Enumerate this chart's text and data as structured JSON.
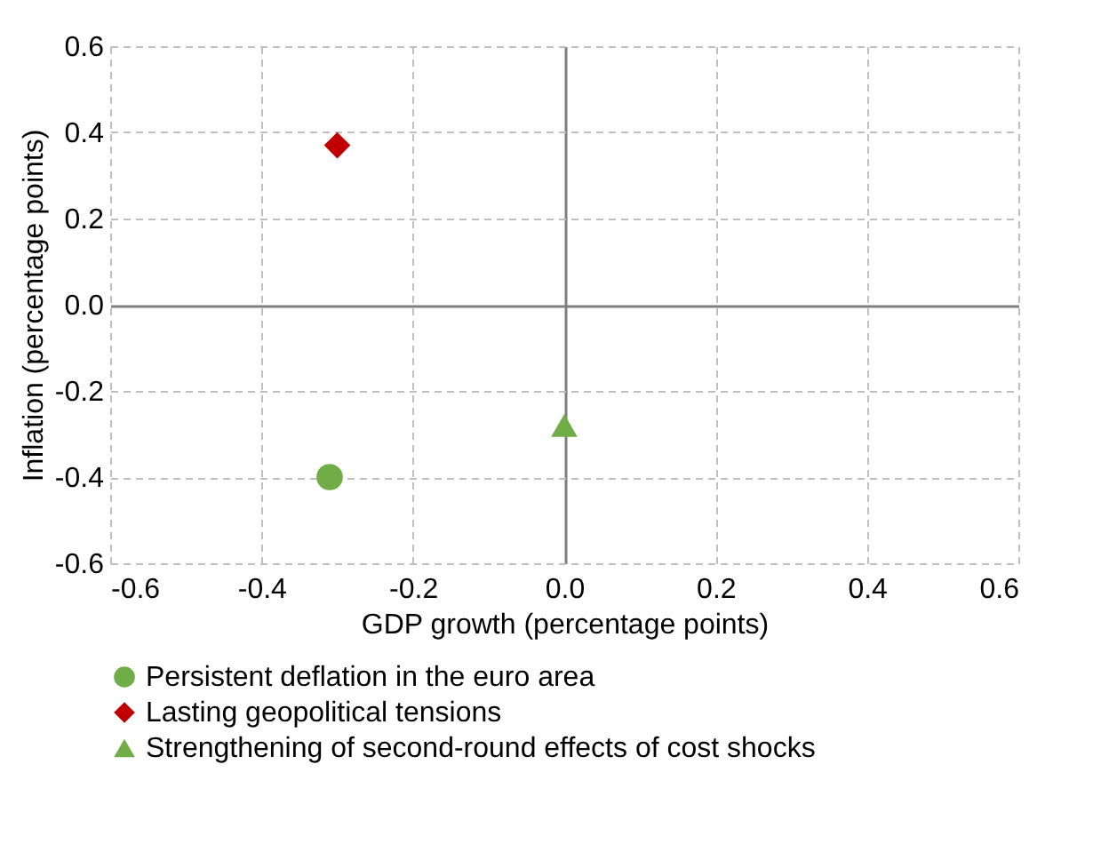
{
  "chart_data": {
    "type": "scatter",
    "xlabel": "GDP growth (percentage points)",
    "ylabel": "Inflation (percentage points)",
    "series": [
      {
        "name": "Persistent deflation in the euro area",
        "color": "#70ad47",
        "marker": "circle",
        "x": [
          -0.31
        ],
        "values": [
          -0.4
        ]
      },
      {
        "name": "Lasting geopolitical tensions",
        "color": "#c00000",
        "marker": "diamond",
        "x": [
          -0.3
        ],
        "values": [
          0.37
        ]
      },
      {
        "name": "Strengthening of second-round effects of cost shocks",
        "color": "#70ad47",
        "marker": "triangle",
        "x": [
          0.0
        ],
        "values": [
          -0.28
        ]
      }
    ],
    "xlim": [
      -0.6,
      0.6
    ],
    "xticks": [
      -0.6,
      -0.4,
      -0.2,
      {
        "value": 0,
        "label": "0.0"
      },
      0.2,
      0.4,
      0.6
    ],
    "ylim": [
      -0.6,
      0.6
    ],
    "yticks": [
      -0.6,
      -0.4,
      -0.2,
      {
        "value": 0,
        "label": "0.0"
      },
      0.2,
      0.4,
      0.6
    ],
    "grid": true,
    "legend": "bottom"
  }
}
